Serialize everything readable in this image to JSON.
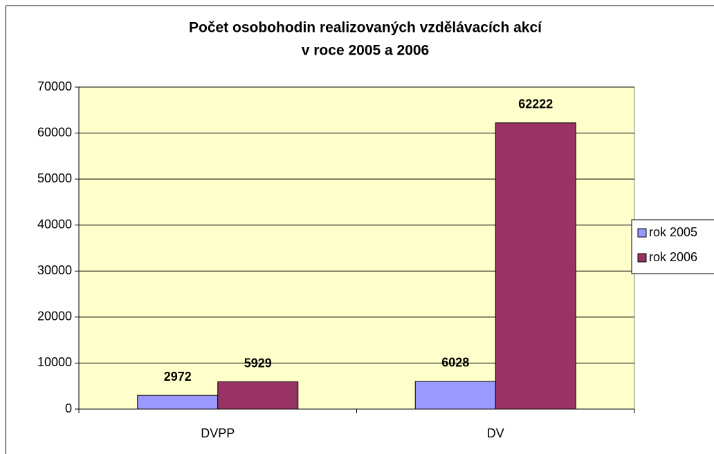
{
  "chart_data": {
    "type": "bar",
    "title": [
      "Počet osobohodin realizovaných vzdělávacích akcí",
      "v roce 2005 a 2006"
    ],
    "categories": [
      "DVPP",
      "DV"
    ],
    "series": [
      {
        "name": "rok 2005",
        "color": "#9999ff",
        "values": [
          2972,
          6028
        ]
      },
      {
        "name": "rok 2006",
        "color": "#993366",
        "values": [
          5929,
          62222
        ]
      }
    ],
    "ylim": [
      0,
      70000
    ],
    "yticks": [
      0,
      10000,
      20000,
      30000,
      40000,
      50000,
      60000,
      70000
    ],
    "grid": true,
    "legend": "right",
    "plot_background": "#ffffcc"
  }
}
